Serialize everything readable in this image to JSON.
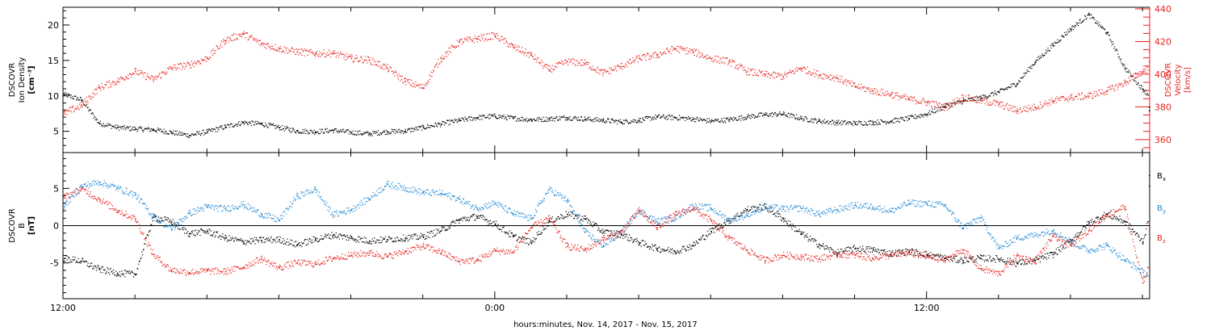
{
  "colors": {
    "black": "#000000",
    "red": "#e8231f",
    "blue": "#1f8ad6",
    "axis": "#000000"
  },
  "time_axis": {
    "tick_labels": [
      "12:00",
      "0:00",
      "12:00"
    ],
    "caption": "hours:minutes, Nov. 14, 2017 - Nov. 15, 2017"
  },
  "chart_data": [
    {
      "type": "scatter",
      "panel": "top",
      "left_ylabel": [
        "DSCOVR",
        "Ion Density",
        "[cm⁻³]"
      ],
      "right_ylabel": [
        "DSCOVR",
        "Velocity",
        "[km/s]"
      ],
      "left_ylim": [
        2,
        22.5
      ],
      "right_ylim": [
        352,
        441
      ],
      "left_ticks": [
        5,
        10,
        15,
        20
      ],
      "right_ticks": [
        360,
        380,
        400,
        420,
        440
      ],
      "x_unit": "hours since 2017-11-14 12:00",
      "xlim": [
        0,
        31
      ],
      "series": [
        {
          "name": "Ion Density",
          "axis": "left",
          "color": "#000000",
          "x": [
            0,
            0.5,
            1,
            1.5,
            2,
            2.5,
            3,
            3.5,
            4,
            4.5,
            5,
            5.5,
            6,
            6.5,
            7,
            7.5,
            8,
            8.5,
            9,
            9.5,
            10,
            10.5,
            11,
            11.5,
            12,
            12.5,
            13,
            13.5,
            14,
            14.5,
            15,
            15.5,
            16,
            16.5,
            17,
            17.5,
            18,
            18.5,
            19,
            19.5,
            20,
            20.5,
            21,
            21.5,
            22,
            22.5,
            23,
            23.5,
            24,
            24.5,
            25,
            25.5,
            26,
            26.5,
            27,
            27.5,
            28,
            28.5,
            29,
            29.5,
            30,
            30.5,
            31
          ],
          "y": [
            10.3,
            9.5,
            6.2,
            5.6,
            5.4,
            5.3,
            4.9,
            4.5,
            5.0,
            5.7,
            6.3,
            6.1,
            5.6,
            5.1,
            5.0,
            5.2,
            4.9,
            4.7,
            5.0,
            5.1,
            5.6,
            6.1,
            6.6,
            7.0,
            7.2,
            6.9,
            6.7,
            6.8,
            7.0,
            6.8,
            6.6,
            6.4,
            6.6,
            7.1,
            7.0,
            6.8,
            6.5,
            6.7,
            7.1,
            7.4,
            7.5,
            6.9,
            6.5,
            6.3,
            6.2,
            6.3,
            6.5,
            6.9,
            7.5,
            8.6,
            9.3,
            9.8,
            10.6,
            11.8,
            14.8,
            17.2,
            19.5,
            21.5,
            19.0,
            14.0,
            11.0,
            8.5,
            8.0
          ]
        },
        {
          "name": "Velocity",
          "axis": "right",
          "color": "#e8231f",
          "x": [
            0,
            0.5,
            1,
            1.5,
            2,
            2.5,
            3,
            3.5,
            4,
            4.5,
            5,
            5.5,
            6,
            6.5,
            7,
            7.5,
            8,
            8.5,
            9,
            9.5,
            10,
            10.5,
            11,
            11.5,
            12,
            12.5,
            13,
            13.5,
            14,
            14.5,
            15,
            15.5,
            16,
            16.5,
            17,
            17.5,
            18,
            18.5,
            19,
            19.5,
            20,
            20.5,
            21,
            21.5,
            22,
            22.5,
            23,
            23.5,
            24,
            24.5,
            25,
            25.5,
            26,
            26.5,
            27,
            27.5,
            28,
            28.5,
            29,
            29.5,
            30,
            30.5,
            31
          ],
          "y": [
            376,
            381,
            392,
            396,
            402,
            397,
            404,
            406,
            410,
            421,
            425,
            419,
            416,
            414,
            413,
            413,
            410,
            409,
            404,
            396,
            392,
            410,
            420,
            422,
            424,
            417,
            412,
            403,
            408,
            407,
            401,
            405,
            410,
            412,
            416,
            414,
            410,
            408,
            402,
            400,
            399,
            404,
            400,
            398,
            393,
            390,
            388,
            385,
            383,
            380,
            386,
            384,
            382,
            378,
            380,
            384,
            386,
            387,
            390,
            395,
            402,
            408,
            414
          ]
        }
      ]
    },
    {
      "type": "scatter",
      "panel": "bottom",
      "left_ylabel": [
        "DSCOVR",
        "B",
        "[nT]"
      ],
      "ylim": [
        -9.8,
        9.8
      ],
      "ticks": [
        -5,
        0,
        5
      ],
      "zero_line": true,
      "x_unit": "hours since 2017-11-14 12:00",
      "xlim": [
        0,
        31
      ],
      "legend": [
        {
          "label": "B",
          "sub": "x",
          "color": "#000000"
        },
        {
          "label": "B",
          "sub": "y",
          "color": "#1f8ad6"
        },
        {
          "label": "B",
          "sub": "z",
          "color": "#e8231f"
        }
      ],
      "series": [
        {
          "name": "Bx",
          "color": "#000000",
          "x": [
            0,
            0.5,
            1,
            1.5,
            2,
            2.5,
            3,
            3.5,
            4,
            4.5,
            5,
            5.5,
            6,
            6.5,
            7,
            7.5,
            8,
            8.5,
            9,
            9.5,
            10,
            10.5,
            11,
            11.5,
            12,
            12.5,
            13,
            13.5,
            14,
            14.5,
            15,
            15.5,
            16,
            16.5,
            17,
            17.5,
            18,
            18.5,
            19,
            19.5,
            20,
            20.5,
            21,
            21.5,
            22,
            22.5,
            23,
            23.5,
            24,
            24.5,
            25,
            25.5,
            26,
            26.5,
            27,
            27.5,
            28,
            28.5,
            29,
            29.5,
            30,
            30.5,
            31
          ],
          "y": [
            -4.3,
            -4.7,
            -5.8,
            -6.3,
            -6.5,
            1.2,
            0.6,
            -1.0,
            -0.7,
            -1.6,
            -2.1,
            -1.9,
            -1.8,
            -2.5,
            -1.8,
            -1.2,
            -1.6,
            -2.0,
            -1.8,
            -1.6,
            -1.4,
            -0.6,
            0.8,
            1.3,
            0.3,
            -1.4,
            -2.2,
            0.6,
            1.6,
            1.0,
            -0.8,
            -1.1,
            -2.2,
            -3.0,
            -3.4,
            -2.6,
            -0.7,
            0.7,
            2.2,
            2.6,
            1.0,
            -1.0,
            -2.5,
            -3.6,
            -3.0,
            -3.2,
            -3.7,
            -3.4,
            -3.8,
            -4.3,
            -4.6,
            -4.3,
            -4.4,
            -5.0,
            -4.6,
            -3.8,
            -2.0,
            0.4,
            1.6,
            0.6,
            -2.1,
            6.8,
            5.4
          ]
        },
        {
          "name": "By",
          "color": "#1f8ad6",
          "x": [
            0,
            0.5,
            1,
            1.5,
            2,
            2.5,
            3,
            3.5,
            4,
            4.5,
            5,
            5.5,
            6,
            6.5,
            7,
            7.5,
            8,
            8.5,
            9,
            9.5,
            10,
            10.5,
            11,
            11.5,
            12,
            12.5,
            13,
            13.5,
            14,
            14.5,
            15,
            15.5,
            16,
            16.5,
            17,
            17.5,
            18,
            18.5,
            19,
            19.5,
            20,
            20.5,
            21,
            21.5,
            22,
            22.5,
            23,
            23.5,
            24,
            24.5,
            25,
            25.5,
            26,
            26.5,
            27,
            27.5,
            28,
            28.5,
            29,
            29.5,
            30,
            30.5,
            31
          ],
          "y": [
            2.6,
            5.3,
            5.9,
            5.1,
            4.2,
            1.3,
            -0.4,
            1.7,
            2.6,
            2.3,
            2.9,
            1.6,
            0.8,
            4.0,
            4.9,
            1.5,
            2.2,
            3.7,
            5.6,
            5.1,
            4.5,
            4.4,
            3.6,
            2.4,
            3.1,
            1.7,
            1.0,
            4.9,
            3.5,
            -0.8,
            -2.6,
            -0.9,
            2.1,
            0.6,
            1.1,
            2.7,
            2.4,
            0.8,
            1.5,
            2.6,
            2.3,
            2.4,
            1.6,
            2.2,
            2.8,
            2.6,
            2.0,
            3.1,
            3.0,
            2.8,
            -0.2,
            1.1,
            -3.0,
            -1.6,
            -1.2,
            -0.6,
            -2.1,
            -3.3,
            -2.6,
            -4.5,
            -6.2,
            -7.6,
            -8.7
          ]
        },
        {
          "name": "Bz",
          "color": "#e8231f",
          "x": [
            0,
            0.5,
            1,
            1.5,
            2,
            2.5,
            3,
            3.5,
            4,
            4.5,
            5,
            5.5,
            6,
            6.5,
            7,
            7.5,
            8,
            8.5,
            9,
            9.5,
            10,
            10.5,
            11,
            11.5,
            12,
            12.5,
            13,
            13.5,
            14,
            14.5,
            15,
            15.5,
            16,
            16.5,
            17,
            17.5,
            18,
            18.5,
            19,
            19.5,
            20,
            20.5,
            21,
            21.5,
            22,
            22.5,
            23,
            23.5,
            24,
            24.5,
            25,
            25.5,
            26,
            26.5,
            27,
            27.5,
            28,
            28.5,
            29,
            29.5,
            30,
            30.5,
            31
          ],
          "y": [
            3.8,
            5.0,
            3.6,
            2.1,
            1.0,
            -3.8,
            -5.9,
            -6.2,
            -6.0,
            -6.1,
            -5.5,
            -4.4,
            -5.6,
            -4.9,
            -5.1,
            -4.3,
            -3.9,
            -3.6,
            -4.1,
            -3.4,
            -2.7,
            -3.5,
            -4.7,
            -4.6,
            -3.3,
            -3.5,
            -0.2,
            1.0,
            -2.7,
            -3.2,
            -1.8,
            -0.9,
            2.1,
            -0.2,
            1.5,
            2.4,
            0.7,
            -1.6,
            -3.2,
            -4.6,
            -3.9,
            -4.1,
            -4.4,
            -3.8,
            -3.9,
            -4.3,
            -3.9,
            -3.6,
            -4.1,
            -4.6,
            -3.2,
            -5.7,
            -6.4,
            -4.0,
            -4.8,
            -1.4,
            -2.6,
            -0.5,
            1.5,
            2.6,
            -7.6,
            -0.6,
            0.4
          ]
        }
      ]
    }
  ]
}
